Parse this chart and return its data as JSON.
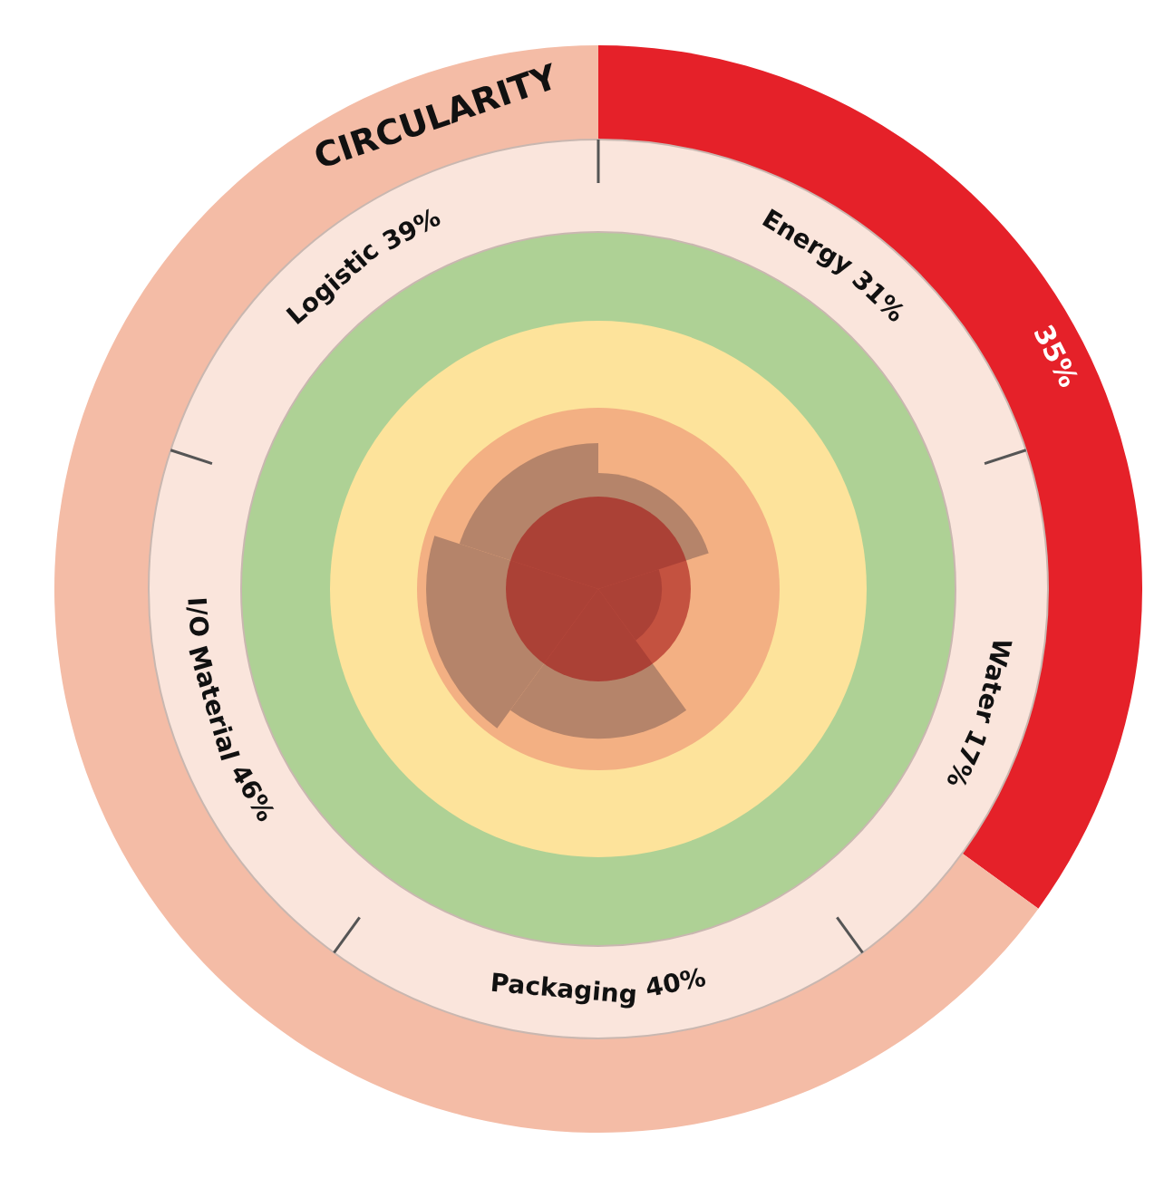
{
  "chart_data": [
    {
      "type": "donut",
      "title": "CIRCULARITY",
      "categories": [
        null,
        null
      ],
      "values": [
        35,
        65
      ],
      "colors": [
        "#e52129",
        "#f4bca6"
      ],
      "value_labels": [
        "35%",
        null
      ]
    },
    {
      "type": "other",
      "categories": [
        "Energy",
        "Water",
        "Packaging",
        "I/O Material",
        "Logistic"
      ],
      "values": [
        31,
        17,
        40,
        46,
        39
      ],
      "value_labels": [
        "31%",
        "17%",
        "40%",
        "46%",
        "39%"
      ],
      "color": "#b5846a"
    }
  ]
}
